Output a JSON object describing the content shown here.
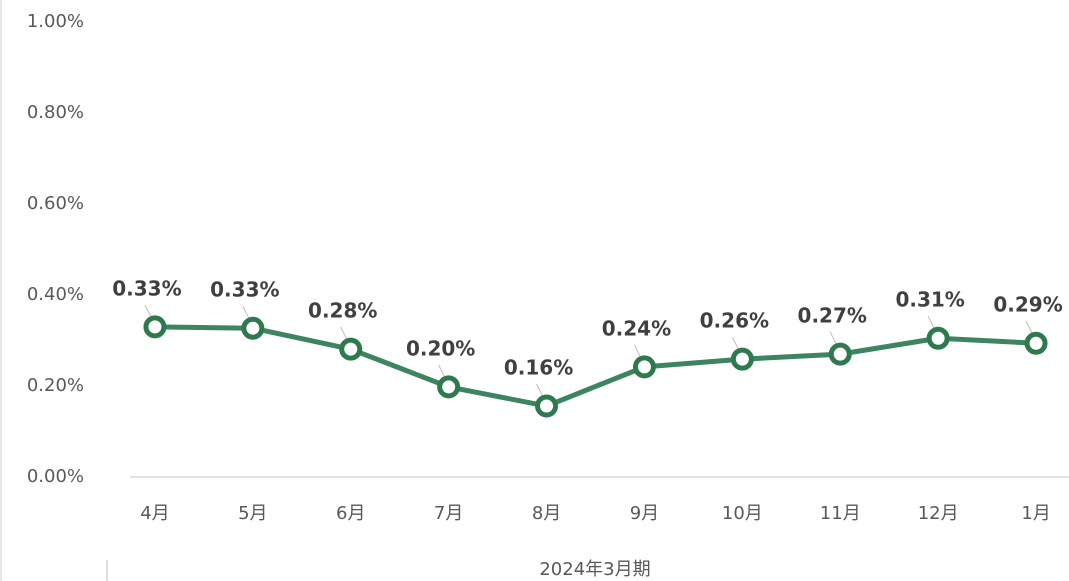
{
  "chart_data": {
    "type": "line",
    "x_label": "2024年3月期",
    "categories": [
      "4月",
      "5月",
      "6月",
      "7月",
      "8月",
      "9月",
      "10月",
      "11月",
      "12月",
      "1月"
    ],
    "series": [
      {
        "name": "",
        "color": "#3c8560",
        "values": [
          0.33,
          0.327,
          0.281,
          0.198,
          0.156,
          0.242,
          0.259,
          0.27,
          0.305,
          0.294
        ],
        "value_labels": [
          "0.33%",
          "0.33%",
          "0.28%",
          "0.20%",
          "0.16%",
          "0.24%",
          "0.26%",
          "0.27%",
          "0.31%",
          "0.29%"
        ]
      }
    ],
    "ylim": [
      0,
      1
    ],
    "yticks": [
      {
        "value": 0,
        "label": "0.00%"
      },
      {
        "value": 0.2,
        "label": "0.20%"
      },
      {
        "value": 0.4,
        "label": "0.40%"
      },
      {
        "value": 0.6,
        "label": "0.60%"
      },
      {
        "value": 0.8,
        "label": "0.80%"
      },
      {
        "value": 1,
        "label": "1.00%"
      }
    ],
    "grid": false
  }
}
